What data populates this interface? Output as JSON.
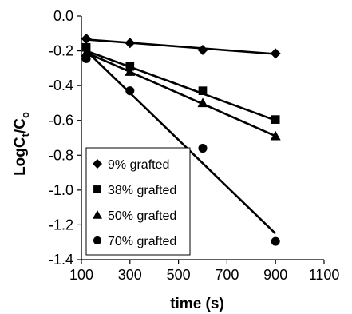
{
  "chart_data": {
    "type": "scatter",
    "xlabel": "time (s)",
    "ylabel_main": "LogC",
    "ylabel_sub1": "t",
    "ylabel_mid": "/C",
    "ylabel_sub2": "o",
    "xlim": [
      100,
      1100
    ],
    "ylim": [
      -1.4,
      0.0
    ],
    "xticks": [
      100,
      300,
      500,
      700,
      900,
      1100
    ],
    "yticks": [
      0.0,
      -0.2,
      -0.4,
      -0.6,
      -0.8,
      -1.0,
      -1.2,
      -1.4
    ],
    "xtick_labels": [
      "100",
      "300",
      "500",
      "700",
      "900",
      "1100"
    ],
    "ytick_labels": [
      "0.0",
      "-0.2",
      "-0.4",
      "-0.6",
      "-0.8",
      "-1.0",
      "-1.2",
      "-1.4"
    ],
    "legend_position": "bottom-left",
    "grid": false,
    "series": [
      {
        "name": "9% grafted",
        "marker": "diamond",
        "points": [
          [
            120,
            -0.13
          ],
          [
            300,
            -0.155
          ],
          [
            600,
            -0.195
          ],
          [
            900,
            -0.215
          ]
        ],
        "fit": [
          [
            120,
            -0.135
          ],
          [
            900,
            -0.218
          ]
        ]
      },
      {
        "name": "38% grafted",
        "marker": "square",
        "points": [
          [
            120,
            -0.18
          ],
          [
            300,
            -0.29
          ],
          [
            600,
            -0.43
          ],
          [
            900,
            -0.595
          ]
        ],
        "fit": [
          [
            120,
            -0.2
          ],
          [
            900,
            -0.6
          ]
        ]
      },
      {
        "name": "50% grafted",
        "marker": "triangle",
        "points": [
          [
            120,
            -0.21
          ],
          [
            300,
            -0.32
          ],
          [
            600,
            -0.5
          ],
          [
            900,
            -0.69
          ]
        ],
        "fit": [
          [
            120,
            -0.21
          ],
          [
            900,
            -0.69
          ]
        ]
      },
      {
        "name": "70% grafted",
        "marker": "circle",
        "points": [
          [
            120,
            -0.245
          ],
          [
            300,
            -0.43
          ],
          [
            600,
            -0.76
          ],
          [
            900,
            -1.295
          ]
        ],
        "fit": [
          [
            120,
            -0.2
          ],
          [
            900,
            -1.25
          ]
        ]
      }
    ]
  }
}
